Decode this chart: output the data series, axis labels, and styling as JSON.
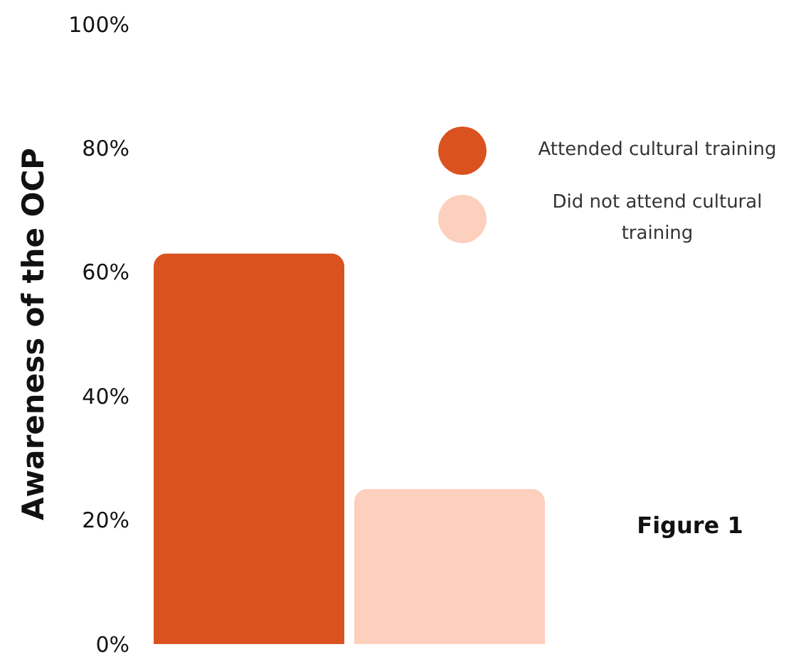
{
  "chart_data": {
    "type": "bar",
    "ylabel": "Awareness of the OCP",
    "categories": [
      null
    ],
    "series": [
      {
        "name": "Attended cultural training",
        "color": "#da5220",
        "values": [
          63
        ]
      },
      {
        "name": "Did not attend cultural training",
        "color": "#fdcfbd",
        "values": [
          25
        ]
      }
    ],
    "ylim": [
      0,
      100
    ],
    "yticks": [
      {
        "value": 0,
        "label": "0%"
      },
      {
        "value": 20,
        "label": "20%"
      },
      {
        "value": 40,
        "label": "40%"
      },
      {
        "value": 60,
        "label": "60%"
      },
      {
        "value": 80,
        "label": "80%"
      },
      {
        "value": 100,
        "label": "100%"
      }
    ],
    "tick_labels": "y",
    "grid": false,
    "legend": "top right",
    "annotations": [
      "Figure 1"
    ]
  }
}
